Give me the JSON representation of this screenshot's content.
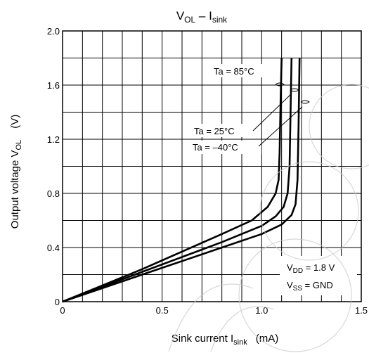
{
  "chart_data": {
    "type": "line",
    "title": {
      "main": "V",
      "main_sub": "OL",
      "sep": " – I",
      "tail_sub": "sink"
    },
    "xlabel": {
      "pre": "Sink current  I",
      "sub": "sink",
      "post": "(mA)"
    },
    "ylabel": {
      "pre": "Output voltage  V",
      "sub": "OL",
      "post": "(V)"
    },
    "xlim": [
      0,
      1.5
    ],
    "ylim": [
      0,
      2.0
    ],
    "x_ticks": [
      {
        "v": 0,
        "label": "0"
      },
      {
        "v": 0.5,
        "label": "0.5"
      },
      {
        "v": 1.0,
        "label": "1.0"
      },
      {
        "v": 1.5,
        "label": "1.5"
      }
    ],
    "y_ticks": [
      {
        "v": 0,
        "label": "0"
      },
      {
        "v": 0.4,
        "label": "0.4"
      },
      {
        "v": 0.8,
        "label": "0.8"
      },
      {
        "v": 1.2,
        "label": "1.2"
      },
      {
        "v": 1.6,
        "label": "1.6"
      },
      {
        "v": 2.0,
        "label": "2.0"
      }
    ],
    "grid": true,
    "series": [
      {
        "name": "Ta = 85°C",
        "x": [
          0,
          0.2,
          0.4,
          0.6,
          0.8,
          0.95,
          1.03,
          1.07,
          1.085,
          1.09,
          1.095,
          1.1
        ],
        "y": [
          0,
          0.12,
          0.24,
          0.37,
          0.5,
          0.6,
          0.7,
          0.8,
          0.9,
          1.1,
          1.5,
          1.8
        ]
      },
      {
        "name": "Ta = 25°C",
        "x": [
          0,
          0.2,
          0.4,
          0.6,
          0.8,
          1.0,
          1.07,
          1.11,
          1.13,
          1.14,
          1.145,
          1.15
        ],
        "y": [
          0,
          0.11,
          0.22,
          0.33,
          0.44,
          0.56,
          0.63,
          0.7,
          0.8,
          1.0,
          1.4,
          1.8
        ]
      },
      {
        "name": "Ta = –40°C",
        "x": [
          0,
          0.2,
          0.4,
          0.6,
          0.8,
          1.0,
          1.1,
          1.15,
          1.17,
          1.18,
          1.185,
          1.19
        ],
        "y": [
          0,
          0.1,
          0.2,
          0.3,
          0.4,
          0.5,
          0.57,
          0.64,
          0.72,
          0.9,
          1.3,
          1.8
        ]
      }
    ],
    "annotations": {
      "ta85": "Ta = 85°C",
      "ta25": "Ta = 25°C",
      "ta40": "Ta = –40°C",
      "vdd_pre": "V",
      "vdd_sub": "DD",
      "vdd_post": " = 1.8 V",
      "vss_pre": "V",
      "vss_sub": "SS",
      "vss_post": " = GND"
    }
  }
}
